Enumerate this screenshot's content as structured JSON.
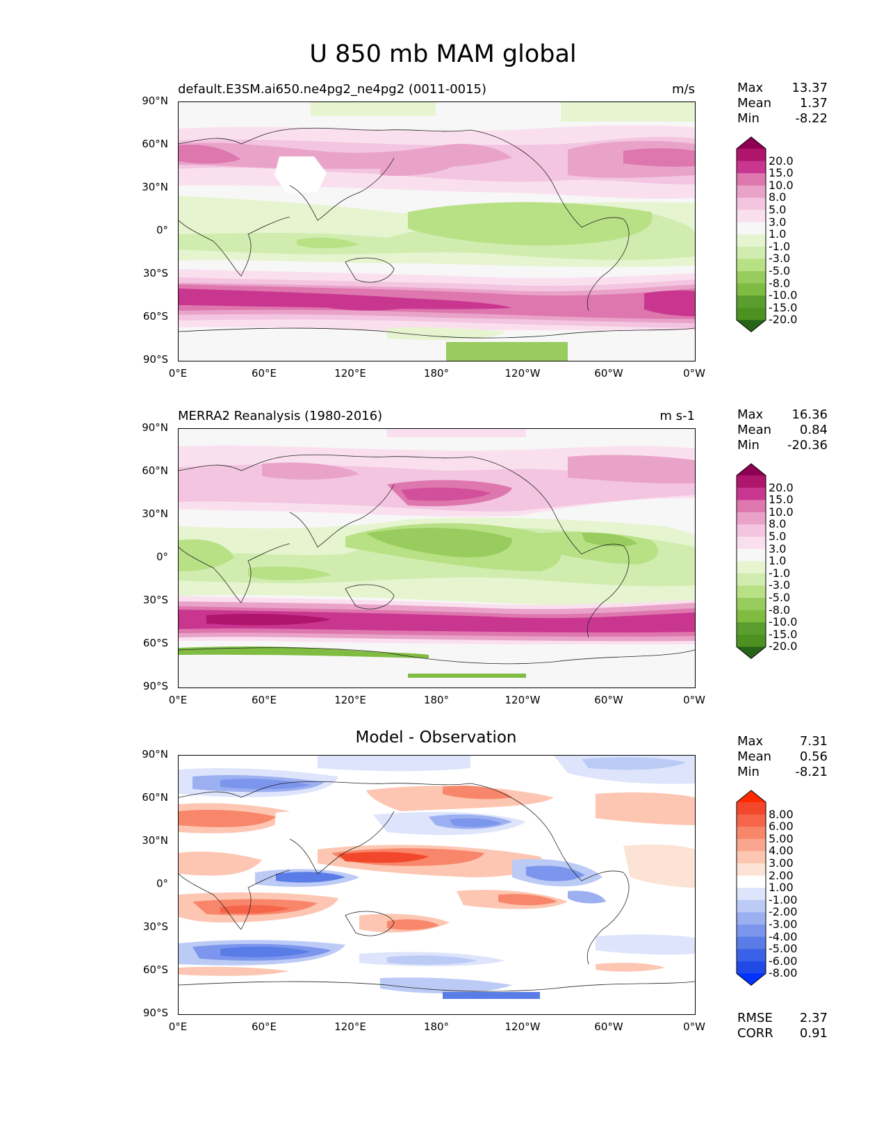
{
  "figure": {
    "title": "U 850 mb MAM global"
  },
  "axes": {
    "yticks": [
      "90°N",
      "60°N",
      "30°N",
      "0°",
      "30°S",
      "60°S",
      "90°S"
    ],
    "xticks": [
      "0°E",
      "60°E",
      "120°E",
      "180°",
      "120°W",
      "60°W",
      "0°W"
    ]
  },
  "panels": [
    {
      "id": "model",
      "title_left": "default.E3SM.ai650.ne4pg2_ne4pg2 (0011-0015)",
      "title_right": "m/s",
      "stats": [
        {
          "label": "Max",
          "value": "13.37"
        },
        {
          "label": "Mean",
          "value": "1.37"
        },
        {
          "label": "Min",
          "value": "-8.22"
        }
      ],
      "colorbar": {
        "labels": [
          "20.0",
          "15.0",
          "10.0",
          "8.0",
          "5.0",
          "3.0",
          "1.0",
          "-1.0",
          "-3.0",
          "-5.0",
          "-8.0",
          "-10.0",
          "-15.0",
          "-20.0"
        ],
        "colors": [
          "#8e0152",
          "#b0156e",
          "#c9368f",
          "#de77ae",
          "#e9a3c9",
          "#f3c5e0",
          "#fae0ef",
          "#f7f7f7",
          "#e6f5d0",
          "#d0ecaf",
          "#b8e186",
          "#98cc5e",
          "#7fbc41",
          "#5a9e2f",
          "#4d9221",
          "#276419"
        ]
      }
    },
    {
      "id": "obs",
      "title_left": "MERRA2 Reanalysis (1980-2016)",
      "title_right": "m s-1",
      "stats": [
        {
          "label": "Max",
          "value": "16.36"
        },
        {
          "label": "Mean",
          "value": "0.84"
        },
        {
          "label": "Min",
          "value": "-20.36"
        }
      ],
      "colorbar": {
        "labels": [
          "20.0",
          "15.0",
          "10.0",
          "8.0",
          "5.0",
          "3.0",
          "1.0",
          "-1.0",
          "-3.0",
          "-5.0",
          "-8.0",
          "-10.0",
          "-15.0",
          "-20.0"
        ],
        "colors": [
          "#8e0152",
          "#b0156e",
          "#c9368f",
          "#de77ae",
          "#e9a3c9",
          "#f3c5e0",
          "#fae0ef",
          "#f7f7f7",
          "#e6f5d0",
          "#d0ecaf",
          "#b8e186",
          "#98cc5e",
          "#7fbc41",
          "#5a9e2f",
          "#4d9221",
          "#276419"
        ]
      }
    },
    {
      "id": "diff",
      "title_center": "Model - Observation",
      "stats": [
        {
          "label": "Max",
          "value": "7.31"
        },
        {
          "label": "Mean",
          "value": "0.56"
        },
        {
          "label": "Min",
          "value": "-8.21"
        }
      ],
      "extra_stats": [
        {
          "label": "RMSE",
          "value": "2.37"
        },
        {
          "label": "CORR",
          "value": "0.91"
        }
      ],
      "colorbar": {
        "labels": [
          "8.00",
          "6.00",
          "5.00",
          "4.00",
          "3.00",
          "2.00",
          "1.00",
          "-1.00",
          "-2.00",
          "-3.00",
          "-4.00",
          "-5.00",
          "-6.00",
          "-8.00"
        ],
        "colors": [
          "#ff2a00",
          "#f2472a",
          "#f6644a",
          "#f8866a",
          "#faa68f",
          "#fcc6b2",
          "#fde2d6",
          "#ffffff",
          "#dde4fb",
          "#bccaf6",
          "#9cb0f1",
          "#7b96ec",
          "#5a7ce7",
          "#3962e8",
          "#1f4ae6",
          "#0033ff"
        ]
      }
    }
  ]
}
